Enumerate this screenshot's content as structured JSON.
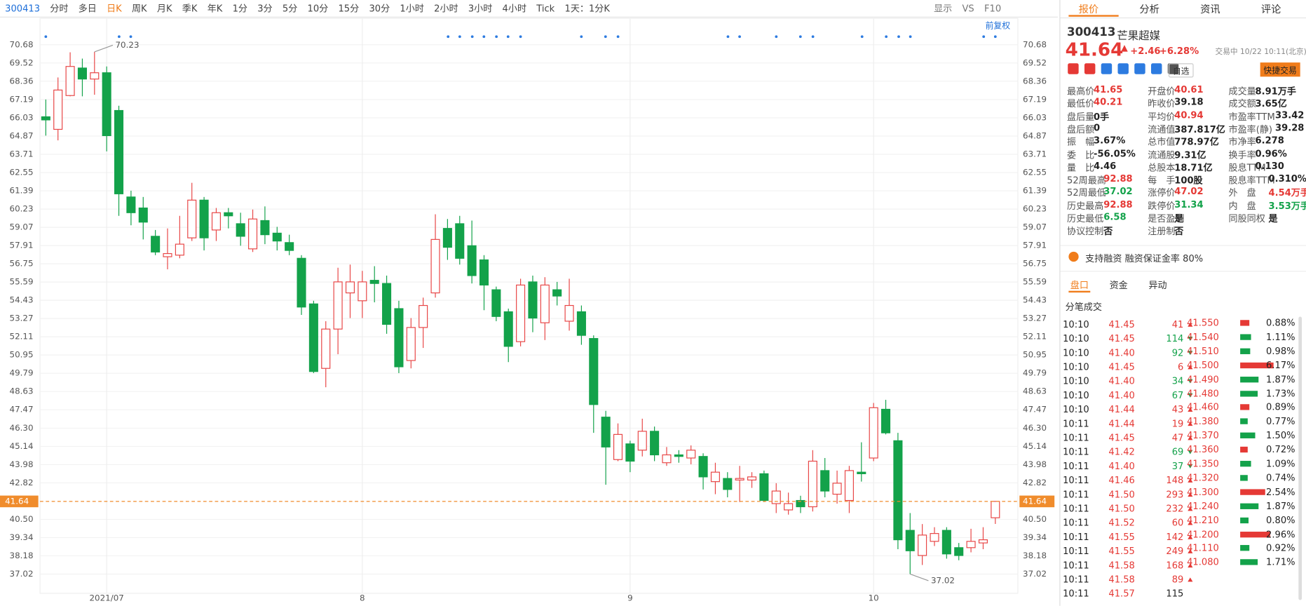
{
  "toolbar": {
    "code": "300413",
    "tabs": [
      "分时",
      "多日",
      "日K",
      "周K",
      "月K",
      "季K",
      "年K",
      "1分",
      "3分",
      "5分",
      "10分",
      "15分",
      "30分",
      "1小时",
      "2小时",
      "3小时",
      "4小时",
      "Tick",
      "1天：1分K"
    ],
    "active_index": 2,
    "right": [
      "显示",
      "VS",
      "F10"
    ]
  },
  "chart_data": {
    "type": "candlestick",
    "adjust_label": "前复权",
    "categories": [
      null,
      null,
      null,
      null,
      null,
      "2021/07",
      null,
      null,
      null,
      null,
      null,
      null,
      null,
      null,
      null,
      null,
      null,
      null,
      null,
      null,
      null,
      null,
      null,
      null,
      null,
      null,
      "8",
      null,
      null,
      null,
      null,
      null,
      null,
      null,
      null,
      null,
      null,
      null,
      null,
      null,
      null,
      null,
      null,
      null,
      null,
      null,
      null,
      null,
      "9",
      null,
      null,
      null,
      null,
      null,
      null,
      null,
      null,
      null,
      null,
      null,
      null,
      null,
      null,
      null,
      null,
      null,
      null,
      null,
      "10",
      null,
      null,
      null,
      null,
      null,
      null,
      null,
      null,
      null,
      null
    ],
    "open": [
      66.1,
      65.3,
      67.45,
      69.2,
      68.5,
      68.9,
      66.5,
      61.0,
      60.3,
      58.5,
      57.2,
      57.3,
      58.4,
      60.8,
      58.9,
      60.0,
      59.3,
      57.7,
      59.5,
      58.7,
      58.1,
      57.1,
      54.2,
      50.1,
      52.6,
      54.9,
      54.4,
      55.7,
      55.5,
      53.9,
      50.6,
      52.7,
      54.9,
      59.0,
      59.3,
      57.9,
      57.0,
      55.1,
      53.7,
      51.8,
      55.6,
      53.0,
      55.1,
      53.1,
      53.7,
      52.0,
      47.0,
      44.3,
      45.3,
      44.9,
      46.1,
      44.1,
      44.6,
      44.4,
      44.5,
      42.9,
      43.1,
      43.0,
      43.0,
      43.4,
      41.5,
      41.1,
      41.7,
      41.3,
      43.6,
      42.1,
      41.7,
      43.5,
      44.4,
      47.5,
      45.5,
      39.8,
      38.2,
      39.1,
      39.8,
      38.7,
      38.7,
      39.0,
      40.6
    ],
    "high": [
      67.2,
      68.6,
      70.2,
      69.8,
      70.23,
      69.3,
      66.8,
      61.4,
      61.0,
      58.9,
      59.0,
      59.8,
      61.9,
      61.0,
      60.3,
      60.3,
      60.0,
      60.2,
      60.4,
      59.1,
      58.6,
      57.3,
      54.4,
      53.1,
      56.5,
      56.7,
      56.3,
      56.6,
      56.0,
      54.4,
      53.3,
      54.6,
      59.9,
      59.6,
      59.8,
      59.5,
      57.3,
      55.3,
      53.9,
      55.8,
      56.0,
      55.9,
      55.6,
      55.8,
      54.1,
      52.2,
      47.4,
      46.6,
      45.5,
      46.9,
      46.4,
      45.1,
      44.9,
      45.2,
      44.7,
      44.1,
      43.5,
      43.9,
      43.5,
      43.6,
      42.8,
      42.2,
      42.0,
      44.9,
      44.4,
      43.6,
      43.9,
      45.4,
      47.9,
      48.1,
      46.0,
      40.9,
      40.2,
      40.0,
      40.0,
      39.0,
      39.9,
      40.0,
      41.65
    ],
    "low": [
      64.9,
      64.6,
      67.4,
      67.4,
      67.5,
      63.9,
      59.8,
      59.2,
      58.3,
      57.3,
      56.4,
      57.1,
      58.2,
      57.6,
      58.2,
      59.0,
      57.9,
      57.5,
      58.0,
      57.6,
      57.3,
      53.5,
      49.8,
      48.9,
      51.0,
      53.3,
      53.3,
      54.3,
      52.3,
      49.8,
      50.1,
      51.4,
      54.6,
      57.0,
      56.7,
      55.5,
      53.8,
      53.1,
      50.5,
      51.5,
      52.4,
      51.9,
      54.1,
      52.5,
      51.6,
      46.0,
      42.7,
      44.2,
      43.5,
      44.5,
      44.2,
      43.9,
      44.1,
      44.0,
      42.4,
      42.1,
      41.9,
      41.6,
      42.5,
      41.6,
      40.9,
      40.8,
      40.9,
      41.0,
      41.9,
      41.5,
      40.9,
      42.9,
      44.2,
      45.9,
      38.6,
      37.02,
      37.6,
      38.8,
      38.0,
      37.9,
      38.4,
      38.6,
      40.21
    ],
    "close": [
      65.9,
      67.8,
      69.3,
      68.5,
      68.9,
      64.9,
      61.2,
      60.0,
      59.4,
      57.5,
      57.4,
      58.0,
      60.8,
      58.4,
      60.0,
      59.8,
      58.5,
      59.6,
      58.6,
      58.2,
      57.6,
      54.0,
      49.9,
      52.6,
      55.6,
      55.6,
      55.6,
      55.5,
      52.9,
      50.2,
      52.7,
      54.1,
      58.3,
      57.8,
      57.1,
      56.0,
      55.4,
      53.4,
      51.5,
      55.4,
      53.3,
      55.4,
      54.7,
      54.1,
      52.2,
      47.8,
      45.1,
      45.9,
      44.2,
      46.1,
      44.6,
      44.6,
      44.5,
      44.9,
      43.2,
      43.5,
      42.4,
      43.1,
      43.2,
      41.7,
      42.3,
      41.5,
      41.3,
      44.2,
      42.3,
      42.8,
      43.6,
      43.4,
      47.6,
      46.0,
      39.2,
      38.5,
      39.5,
      39.6,
      38.3,
      38.2,
      39.1,
      39.2,
      41.64
    ],
    "ylim": [
      35.9,
      71.3
    ],
    "yticks": [
      70.68,
      69.52,
      68.36,
      67.19,
      66.03,
      64.87,
      63.71,
      62.55,
      61.39,
      60.23,
      59.07,
      57.91,
      56.75,
      55.59,
      54.43,
      53.27,
      52.11,
      50.95,
      49.79,
      48.63,
      47.47,
      {
        "value": 46.3,
        "label": "46.30"
      },
      45.14,
      43.98,
      42.82,
      {
        "value": 40.5,
        "label": "40.50"
      },
      39.34,
      38.18,
      37.02
    ],
    "up_color": "#e84646",
    "down_color": "#13a24a",
    "last_price": 41.64,
    "last_price_color": "#f08c2c",
    "max_label": 70.23,
    "min_label": 37.02,
    "grid": true
  },
  "panel": {
    "tabs": [
      "报价",
      "分析",
      "资讯",
      "评论"
    ],
    "code": "300413",
    "name": "芒果超媒",
    "price": "41.64",
    "change": "+2.46",
    "change_pct": "+6.28%",
    "status": "交易中 10/22 10:11(北京)",
    "watch": "自选",
    "trade": "快捷交易",
    "stats": [
      [
        [
          "最高价",
          "41.65",
          "up"
        ],
        [
          "开盘价",
          "40.61",
          "up"
        ],
        [
          "成交量",
          "8.91万手",
          "plain"
        ]
      ],
      [
        [
          "最低价",
          "40.21",
          "up"
        ],
        [
          "昨收价",
          "39.18",
          "plain"
        ],
        [
          "成交额",
          "3.65亿",
          "plain"
        ]
      ],
      [
        [
          "盘后量",
          "0手",
          "plain"
        ],
        [
          "平均价",
          "40.94",
          "up"
        ],
        [
          "市盈率TTM",
          "33.42",
          "plain"
        ]
      ],
      [
        [
          "盘后额",
          "0",
          "plain"
        ],
        [
          "流通值",
          "387.817亿",
          "plain"
        ],
        [
          "市盈率(静)",
          "39.28",
          "plain"
        ]
      ],
      [
        [
          "振　幅",
          "3.67%",
          "plain"
        ],
        [
          "总市值",
          "778.97亿",
          "plain"
        ],
        [
          "市净率",
          "6.278",
          "plain"
        ]
      ],
      [
        [
          "委　比",
          "-56.05%",
          "plain"
        ],
        [
          "流通股",
          "9.31亿",
          "plain"
        ],
        [
          "换手率",
          "0.96%",
          "plain"
        ]
      ],
      [
        [
          "量　比",
          "4.46",
          "plain"
        ],
        [
          "总股本",
          "18.71亿",
          "plain"
        ],
        [
          "股息TTM",
          "0.130",
          "plain"
        ]
      ],
      [
        [
          "52周最高",
          "92.88",
          "up"
        ],
        [
          "每　手",
          "100股",
          "plain"
        ],
        [
          "股息率TTM",
          "0.310%",
          "plain"
        ]
      ],
      [
        [
          "52周最低",
          "37.02",
          "down"
        ],
        [
          "涨停价",
          "47.02",
          "up"
        ],
        [
          "外　盘",
          "4.54万手",
          "up"
        ]
      ],
      [
        [
          "历史最高",
          "92.88",
          "up"
        ],
        [
          "跌停价",
          "31.34",
          "down"
        ],
        [
          "内　盘",
          "3.53万手",
          "down"
        ]
      ],
      [
        [
          "历史最低",
          "6.58",
          "down"
        ],
        [
          "是否盈利",
          "是",
          "plain"
        ],
        [
          "同股同权",
          "是",
          "plain"
        ]
      ],
      [
        [
          "协议控制",
          "否",
          "plain"
        ],
        [
          "注册制",
          "否",
          "plain"
        ]
      ]
    ],
    "margin": "支持融资 融资保证金率 80%",
    "subtabs": [
      "盘口",
      "资金",
      "异动"
    ],
    "trades_title": "分笔成交",
    "trades": [
      [
        "10:10",
        "41.45",
        "41",
        "up"
      ],
      [
        "10:10",
        "41.45",
        "114",
        "down"
      ],
      [
        "10:10",
        "41.40",
        "92",
        "down"
      ],
      [
        "10:10",
        "41.45",
        "6",
        "up"
      ],
      [
        "10:10",
        "41.40",
        "34",
        "down"
      ],
      [
        "10:10",
        "41.40",
        "67",
        "down"
      ],
      [
        "10:10",
        "41.44",
        "43",
        "up"
      ],
      [
        "10:11",
        "41.44",
        "19",
        "up"
      ],
      [
        "10:11",
        "41.45",
        "47",
        "up"
      ],
      [
        "10:11",
        "41.42",
        "69",
        "down"
      ],
      [
        "10:11",
        "41.40",
        "37",
        "down"
      ],
      [
        "10:11",
        "41.46",
        "148",
        "up"
      ],
      [
        "10:11",
        "41.50",
        "293",
        "up"
      ],
      [
        "10:11",
        "41.50",
        "232",
        "up"
      ],
      [
        "10:11",
        "41.52",
        "60",
        "up"
      ],
      [
        "10:11",
        "41.55",
        "142",
        "up"
      ],
      [
        "10:11",
        "41.55",
        "249",
        "up"
      ],
      [
        "10:11",
        "41.58",
        "168",
        "up"
      ],
      [
        "10:11",
        "41.58",
        "89",
        "up"
      ],
      [
        "10:11",
        "41.57",
        "115",
        "flat"
      ]
    ],
    "depth": [
      [
        "41.550",
        0.88,
        "0.88%"
      ],
      [
        "41.540",
        1.11,
        "1.11%"
      ],
      [
        "41.510",
        0.98,
        "0.98%"
      ],
      [
        "41.500",
        6.17,
        "6.17%"
      ],
      [
        "41.490",
        1.87,
        "1.87%"
      ],
      [
        "41.480",
        1.73,
        "1.73%"
      ],
      [
        "41.460",
        0.89,
        "0.89%"
      ],
      [
        "41.380",
        0.77,
        "0.77%"
      ],
      [
        "41.370",
        1.5,
        "1.50%"
      ],
      [
        "41.360",
        0.72,
        "0.72%"
      ],
      [
        "41.350",
        1.09,
        "1.09%"
      ],
      [
        "41.320",
        0.74,
        "0.74%"
      ],
      [
        "41.300",
        2.54,
        "2.54%"
      ],
      [
        "41.240",
        1.87,
        "1.87%"
      ],
      [
        "41.210",
        0.8,
        "0.80%"
      ],
      [
        "41.200",
        2.96,
        "2.96%"
      ],
      [
        "41.110",
        0.92,
        "0.92%"
      ],
      [
        "41.080",
        1.71,
        "1.71%"
      ]
    ]
  }
}
